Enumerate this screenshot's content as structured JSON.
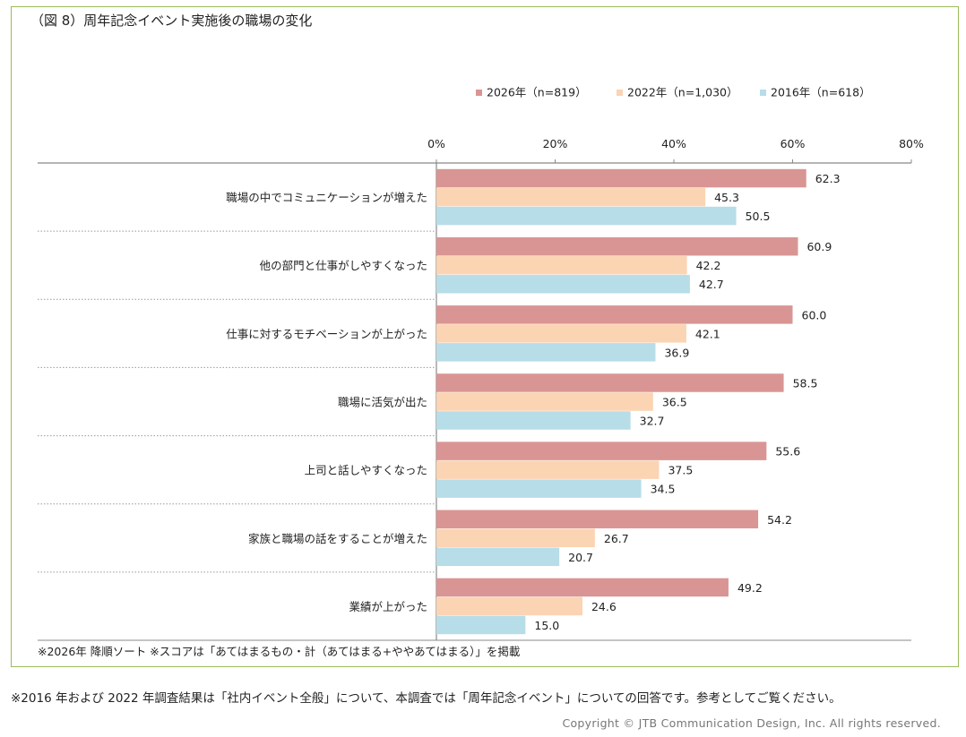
{
  "title": "（図 8）周年記念イベント実施後の職場の変化",
  "note": "※2026年 降順ソート ※スコアは「あてはまるもの・計（あてはまる+ややあてはまる）」を掲載",
  "footnote": "※2016 年および 2022 年調査結果は「社内イベント全般」について、本調査では「周年記念イベント」についての回答です。参考としてご覧ください。",
  "copyright": "Copyright © JTB Communication Design, Inc. All rights reserved.",
  "chart_data": {
    "type": "bar",
    "orientation": "horizontal",
    "title": "（図 8）周年記念イベント実施後の職場の変化",
    "categories": [
      "職場の中でコミュニケーションが増えた",
      "他の部門と仕事がしやすくなった",
      "仕事に対するモチベーションが上がった",
      "職場に活気が出た",
      "上司と話しやすくなった",
      "家族と職場の話をすることが増えた",
      "業績が上がった"
    ],
    "series": [
      {
        "name": "2026年（n=819）",
        "color": "#d99594",
        "values": [
          62.3,
          60.9,
          60.0,
          58.5,
          55.6,
          54.2,
          49.2
        ]
      },
      {
        "name": "2022年（n=1,030）",
        "color": "#fbd4b4",
        "values": [
          45.3,
          42.2,
          42.1,
          36.5,
          37.5,
          26.7,
          24.6
        ]
      },
      {
        "name": "2016年（n=618）",
        "color": "#b7dde8",
        "values": [
          50.5,
          42.7,
          36.9,
          32.7,
          34.5,
          20.7,
          15.0
        ]
      }
    ],
    "xlim": [
      0,
      80
    ],
    "ticks": [
      "0%",
      "20%",
      "40%",
      "60%",
      "80%"
    ],
    "legend_position": "top-right"
  }
}
